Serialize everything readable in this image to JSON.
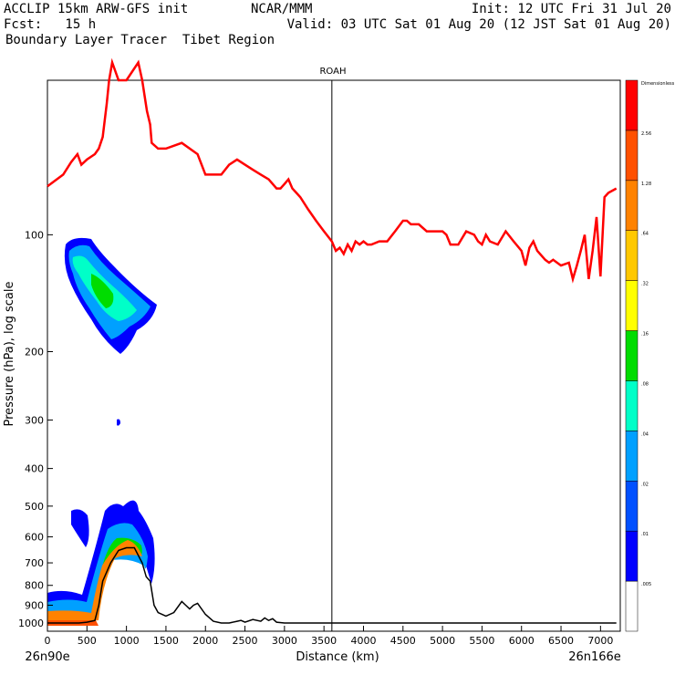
{
  "header": {
    "left1": "ACCLIP 15km ARW-GFS init",
    "center1": "NCAR/MMM",
    "init": "Init: 12 UTC Fri 31 Jul 20",
    "left2": "Fcst:   15 h",
    "valid": "Valid: 03 UTC Sat 01 Aug 20 (12 JST Sat 01 Aug 20)",
    "left3": "Boundary Layer Tracer  Tibet Region"
  },
  "chart_data": {
    "type": "heatmap",
    "title": "ROAH",
    "xlabel": "Distance (km)",
    "ylabel": "Pressure (hPa), log scale",
    "y_scale": "log",
    "y_inverted": true,
    "xlim": [
      0,
      7250
    ],
    "ylim": [
      1050,
      40
    ],
    "x_ticks": [
      0,
      500,
      1000,
      1500,
      2000,
      2500,
      3000,
      3500,
      4000,
      4500,
      5000,
      5500,
      6000,
      6500,
      7000
    ],
    "y_ticks": [
      100,
      200,
      300,
      400,
      500,
      600,
      700,
      800,
      900,
      1000
    ],
    "x_end_labels": {
      "left": "26n90e",
      "right": "26n166e"
    },
    "station_marker": {
      "label": "ROAH",
      "x": 3600
    },
    "colorbar": {
      "labels": [
        ".005",
        ".01",
        ".02",
        ".04",
        ".08",
        ".16",
        ".32",
        ".64",
        "1.28",
        "2.56",
        "Dimensionless"
      ],
      "colors": [
        "#ffffff",
        "#0000ff",
        "#0050ff",
        "#00a0ff",
        "#00ffc8",
        "#00dc00",
        "#ffff00",
        "#ffc800",
        "#ff8200",
        "#ff5000",
        "#ff0000"
      ]
    },
    "series": [
      {
        "color": "#ff0000",
        "x": [
          0,
          200,
          300,
          380,
          430,
          500,
          600,
          650,
          700,
          750,
          780,
          820,
          900,
          1000,
          1150,
          1200,
          1260,
          1300,
          1320,
          1400,
          1500,
          1700,
          1900,
          2000,
          2100,
          2200,
          2300,
          2400,
          2500,
          2600,
          2700,
          2800,
          2900,
          2950,
          3000,
          3050,
          3100,
          3150,
          3200,
          3300,
          3400,
          3500,
          3600,
          3650,
          3700,
          3750,
          3800,
          3850,
          3900,
          3950,
          4000,
          4050,
          4100,
          4200,
          4300,
          4400,
          4500,
          4550,
          4600,
          4700,
          4800,
          4900,
          5000,
          5050,
          5100,
          5200,
          5300,
          5400,
          5450,
          5500,
          5550,
          5600,
          5700,
          5800,
          5900,
          6000,
          6050,
          6100,
          6150,
          6200,
          6300,
          6350,
          6400,
          6500,
          6600,
          6650,
          6700,
          6750,
          6800,
          6850,
          6900,
          6950,
          7000,
          7050,
          7100,
          7200
        ],
        "y": [
          75,
          70,
          65,
          62,
          66,
          64,
          62,
          60,
          56,
          46,
          40,
          36,
          40,
          40,
          36,
          40,
          48,
          52,
          58,
          60,
          60,
          58,
          62,
          70,
          70,
          70,
          66,
          64,
          66,
          68,
          70,
          72,
          76,
          76,
          74,
          72,
          76,
          78,
          80,
          86,
          92,
          98,
          104,
          110,
          108,
          112,
          106,
          110,
          104,
          106,
          104,
          106,
          106,
          104,
          104,
          98,
          92,
          92,
          94,
          94,
          98,
          98,
          98,
          100,
          106,
          106,
          98,
          100,
          104,
          106,
          100,
          104,
          106,
          98,
          104,
          110,
          120,
          108,
          104,
          110,
          116,
          118,
          116,
          120,
          118,
          130,
          120,
          110,
          100,
          130,
          110,
          90,
          128,
          80,
          78,
          76
        ]
      },
      {
        "color": "#000000",
        "x": [
          0,
          200,
          400,
          500,
          600,
          650,
          700,
          800,
          900,
          1000,
          1100,
          1200,
          1250,
          1300,
          1350,
          1400,
          1500,
          1600,
          1700,
          1750,
          1800,
          1850,
          1900,
          2000,
          2100,
          2200,
          2300,
          2400,
          2450,
          2500,
          2600,
          2700,
          2750,
          2800,
          2850,
          2900,
          3000,
          3200,
          3400,
          3600,
          4000,
          4500,
          5000,
          5500,
          6000,
          6500,
          7000,
          7200
        ],
        "y": [
          1000,
          1000,
          1000,
          995,
          985,
          900,
          780,
          700,
          650,
          640,
          640,
          700,
          760,
          780,
          900,
          940,
          960,
          940,
          880,
          900,
          920,
          900,
          890,
          950,
          990,
          1000,
          1000,
          990,
          985,
          995,
          980,
          990,
          970,
          985,
          975,
          995,
          1000,
          1000,
          1000,
          1000,
          1000,
          1000,
          1000,
          1000,
          1000,
          1000,
          1000,
          1000
        ]
      }
    ],
    "grid": false,
    "legend": "colorbar-right"
  }
}
